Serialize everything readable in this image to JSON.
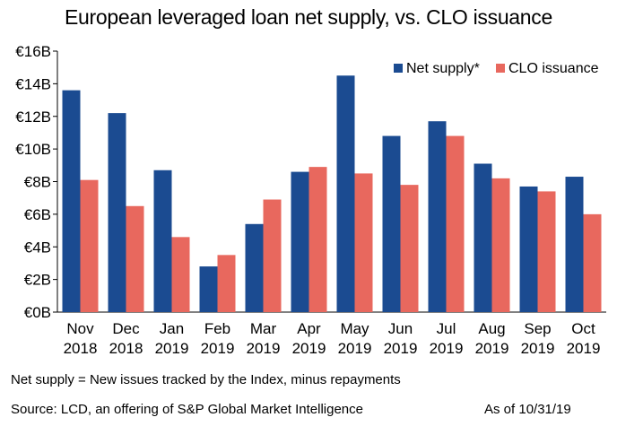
{
  "chart_data": {
    "type": "bar",
    "title": "European leveraged loan net supply, vs. CLO issuance",
    "categories": [
      [
        "Nov",
        "2018"
      ],
      [
        "Dec",
        "2018"
      ],
      [
        "Jan",
        "2019"
      ],
      [
        "Feb",
        "2019"
      ],
      [
        "Mar",
        "2019"
      ],
      [
        "Apr",
        "2019"
      ],
      [
        "May",
        "2019"
      ],
      [
        "Jun",
        "2019"
      ],
      [
        "Jul",
        "2019"
      ],
      [
        "Aug",
        "2019"
      ],
      [
        "Sep",
        "2019"
      ],
      [
        "Oct",
        "2019"
      ]
    ],
    "series": [
      {
        "name": "Net supply*",
        "color": "#1b4b91",
        "values": [
          13.6,
          12.2,
          8.7,
          2.8,
          5.4,
          8.6,
          14.5,
          10.8,
          11.7,
          9.1,
          7.7,
          8.3
        ]
      },
      {
        "name": "CLO issuance",
        "color": "#e8685e",
        "values": [
          8.1,
          6.5,
          4.6,
          3.5,
          6.9,
          8.9,
          8.5,
          7.8,
          10.8,
          8.2,
          7.4,
          6.0
        ]
      }
    ],
    "ylim": [
      0,
      16
    ],
    "yticks": [
      {
        "value": 0,
        "label": "€0B"
      },
      {
        "value": 2,
        "label": "€2B"
      },
      {
        "value": 4,
        "label": "€4B"
      },
      {
        "value": 6,
        "label": "€6B"
      },
      {
        "value": 8,
        "label": "€8B"
      },
      {
        "value": 10,
        "label": "€10B"
      },
      {
        "value": 12,
        "label": "€12B"
      },
      {
        "value": 14,
        "label": "€14B"
      },
      {
        "value": 16,
        "label": "€16B"
      }
    ],
    "grid": false,
    "legend_position": "top-right"
  },
  "footer": {
    "note": "Net supply = New issues tracked by the Index, minus repayments",
    "source": "Source: LCD, an offering of S&P Global Market Intelligence",
    "as_of": "As of 10/31/19"
  }
}
